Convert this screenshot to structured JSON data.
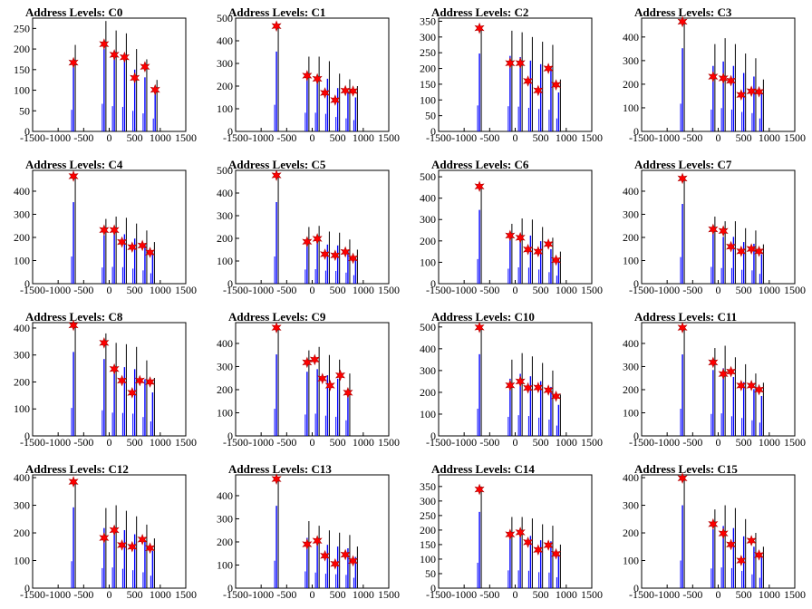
{
  "chart_data": [
    {
      "type": "bar",
      "title": "Address Levels: C0",
      "xlim": [
        -1500,
        1500
      ],
      "ylim": [
        0,
        275
      ],
      "xticks": [
        "-1500",
        "-1000",
        "-500",
        "0",
        "500",
        "1000",
        "1500"
      ],
      "yticks": [
        "0",
        "50",
        "100",
        "150",
        "200",
        "250"
      ],
      "peaks": [
        [
          -700,
          210
        ],
        [
          -100,
          268
        ],
        [
          100,
          245
        ],
        [
          300,
          238
        ],
        [
          500,
          200
        ],
        [
          700,
          175
        ],
        [
          900,
          125
        ]
      ],
      "markers": [
        [
          -700,
          167
        ],
        [
          -100,
          212
        ],
        [
          100,
          186
        ],
        [
          300,
          180
        ],
        [
          500,
          130
        ],
        [
          700,
          157
        ],
        [
          900,
          101
        ]
      ]
    },
    {
      "type": "bar",
      "title": "Address Levels: C1",
      "xlim": [
        -1500,
        1500
      ],
      "ylim": [
        0,
        500
      ],
      "xticks": [
        "-1500",
        "-1000",
        "-500",
        "0",
        "500",
        "1000",
        "1500"
      ],
      "yticks": [
        "0",
        "100",
        "200",
        "300",
        "400",
        "500"
      ],
      "peaks": [
        [
          -700,
          470
        ],
        [
          -100,
          330
        ],
        [
          100,
          330
        ],
        [
          300,
          310
        ],
        [
          500,
          255
        ],
        [
          700,
          230
        ],
        [
          850,
          200
        ]
      ],
      "markers": [
        [
          -700,
          465
        ],
        [
          -100,
          246
        ],
        [
          100,
          232
        ],
        [
          250,
          170
        ],
        [
          450,
          138
        ],
        [
          650,
          180
        ],
        [
          800,
          178
        ]
      ]
    },
    {
      "type": "bar",
      "title": "Address Levels: C2",
      "xlim": [
        -1500,
        1500
      ],
      "ylim": [
        0,
        360
      ],
      "xticks": [
        "-1500",
        "-1000",
        "-500",
        "0",
        "500",
        "1000",
        "1500"
      ],
      "yticks": [
        "0",
        "50",
        "100",
        "150",
        "200",
        "250",
        "300",
        "350"
      ],
      "peaks": [
        [
          -700,
          330
        ],
        [
          -100,
          320
        ],
        [
          100,
          315
        ],
        [
          300,
          300
        ],
        [
          500,
          285
        ],
        [
          700,
          275
        ],
        [
          850,
          165
        ]
      ],
      "markers": [
        [
          -700,
          328
        ],
        [
          -100,
          217
        ],
        [
          100,
          217
        ],
        [
          250,
          160
        ],
        [
          450,
          130
        ],
        [
          650,
          200
        ],
        [
          800,
          148
        ]
      ]
    },
    {
      "type": "bar",
      "title": "Address Levels: C3",
      "xlim": [
        -1500,
        1500
      ],
      "ylim": [
        0,
        480
      ],
      "xticks": [
        "-1500",
        "-1000",
        "-500",
        "0",
        "500",
        "1000",
        "1500"
      ],
      "yticks": [
        "0",
        "100",
        "200",
        "300",
        "400"
      ],
      "peaks": [
        [
          -700,
          470
        ],
        [
          -100,
          370
        ],
        [
          100,
          395
        ],
        [
          300,
          370
        ],
        [
          500,
          330
        ],
        [
          700,
          310
        ],
        [
          850,
          220
        ]
      ],
      "markers": [
        [
          -700,
          465
        ],
        [
          -100,
          232
        ],
        [
          100,
          225
        ],
        [
          250,
          215
        ],
        [
          450,
          155
        ],
        [
          650,
          170
        ],
        [
          800,
          168
        ]
      ]
    },
    {
      "type": "bar",
      "title": "Address Levels: C4",
      "xlim": [
        -1500,
        1500
      ],
      "ylim": [
        0,
        490
      ],
      "xticks": [
        "-1500",
        "-1000",
        "-500",
        "0",
        "500",
        "1000",
        "1500"
      ],
      "yticks": [
        "0",
        "100",
        "200",
        "300",
        "400"
      ],
      "peaks": [
        [
          -700,
          470
        ],
        [
          -100,
          280
        ],
        [
          100,
          290
        ],
        [
          300,
          285
        ],
        [
          500,
          260
        ],
        [
          700,
          230
        ],
        [
          850,
          180
        ]
      ],
      "markers": [
        [
          -700,
          465
        ],
        [
          -100,
          232
        ],
        [
          100,
          232
        ],
        [
          250,
          180
        ],
        [
          450,
          158
        ],
        [
          650,
          165
        ],
        [
          800,
          135
        ]
      ]
    },
    {
      "type": "bar",
      "title": "Address Levels: C5",
      "xlim": [
        -1500,
        1500
      ],
      "ylim": [
        0,
        500
      ],
      "xticks": [
        "-1500",
        "-1000",
        "-500",
        "0",
        "500",
        "1000",
        "1500"
      ],
      "yticks": [
        "0",
        "100",
        "200",
        "300",
        "400",
        "500"
      ],
      "peaks": [
        [
          -700,
          480
        ],
        [
          -100,
          250
        ],
        [
          100,
          255
        ],
        [
          300,
          230
        ],
        [
          500,
          225
        ],
        [
          700,
          195
        ],
        [
          850,
          150
        ]
      ],
      "markers": [
        [
          -700,
          478
        ],
        [
          -100,
          185
        ],
        [
          100,
          198
        ],
        [
          250,
          130
        ],
        [
          450,
          125
        ],
        [
          650,
          140
        ],
        [
          800,
          112
        ]
      ]
    },
    {
      "type": "bar",
      "title": "Address Levels: C6",
      "xlim": [
        -1500,
        1500
      ],
      "ylim": [
        0,
        530
      ],
      "xticks": [
        "-1500",
        "-1000",
        "-500",
        "0",
        "500",
        "1000",
        "1500"
      ],
      "yticks": [
        "0",
        "100",
        "200",
        "300",
        "400",
        "500"
      ],
      "peaks": [
        [
          -700,
          460
        ],
        [
          -100,
          280
        ],
        [
          100,
          305
        ],
        [
          300,
          300
        ],
        [
          500,
          265
        ],
        [
          700,
          215
        ],
        [
          850,
          150
        ]
      ],
      "markers": [
        [
          -700,
          455
        ],
        [
          -100,
          225
        ],
        [
          100,
          215
        ],
        [
          250,
          160
        ],
        [
          450,
          150
        ],
        [
          650,
          185
        ],
        [
          800,
          110
        ]
      ]
    },
    {
      "type": "bar",
      "title": "Address Levels: C7",
      "xlim": [
        -1500,
        1500
      ],
      "ylim": [
        0,
        490
      ],
      "xticks": [
        "-1500",
        "-1000",
        "-500",
        "0",
        "500",
        "1000",
        "1500"
      ],
      "yticks": [
        "0",
        "100",
        "200",
        "300",
        "400"
      ],
      "peaks": [
        [
          -700,
          460
        ],
        [
          -100,
          290
        ],
        [
          100,
          270
        ],
        [
          300,
          270
        ],
        [
          500,
          240
        ],
        [
          700,
          230
        ],
        [
          850,
          170
        ]
      ],
      "markers": [
        [
          -700,
          455
        ],
        [
          -100,
          235
        ],
        [
          100,
          228
        ],
        [
          250,
          160
        ],
        [
          450,
          140
        ],
        [
          650,
          150
        ],
        [
          800,
          140
        ]
      ]
    },
    {
      "type": "bar",
      "title": "Address Levels: C8",
      "xlim": [
        -1500,
        1500
      ],
      "ylim": [
        0,
        420
      ],
      "xticks": [
        "-1500",
        "-1000",
        "-500",
        "0",
        "500",
        "1000",
        "1500"
      ],
      "yticks": [
        "0",
        "100",
        "200",
        "300",
        "400"
      ],
      "peaks": [
        [
          -700,
          415
        ],
        [
          -100,
          380
        ],
        [
          100,
          345
        ],
        [
          300,
          340
        ],
        [
          500,
          330
        ],
        [
          700,
          280
        ],
        [
          850,
          215
        ]
      ],
      "markers": [
        [
          -700,
          410
        ],
        [
          -100,
          345
        ],
        [
          100,
          248
        ],
        [
          250,
          205
        ],
        [
          450,
          160
        ],
        [
          600,
          205
        ],
        [
          800,
          200
        ]
      ]
    },
    {
      "type": "bar",
      "title": "Address Levels: C9",
      "xlim": [
        -1500,
        1500
      ],
      "ylim": [
        0,
        490
      ],
      "xticks": [
        "-1500",
        "-1000",
        "-500",
        "0",
        "500",
        "1000",
        "1500"
      ],
      "yticks": [
        "0",
        "100",
        "200",
        "300",
        "400"
      ],
      "peaks": [
        [
          -700,
          470
        ],
        [
          -100,
          370
        ],
        [
          100,
          385
        ],
        [
          300,
          350
        ],
        [
          500,
          330
        ],
        [
          700,
          270
        ]
      ],
      "markers": [
        [
          -700,
          468
        ],
        [
          -100,
          318
        ],
        [
          50,
          330
        ],
        [
          200,
          248
        ],
        [
          350,
          218
        ],
        [
          550,
          262
        ],
        [
          700,
          187
        ]
      ]
    },
    {
      "type": "bar",
      "title": "Address Levels: C10",
      "xlim": [
        -1500,
        1500
      ],
      "ylim": [
        0,
        520
      ],
      "xticks": [
        "-1500",
        "-1000",
        "-500",
        "0",
        "500",
        "1000",
        "1500"
      ],
      "yticks": [
        "0",
        "100",
        "200",
        "300",
        "400",
        "500"
      ],
      "peaks": [
        [
          -700,
          500
        ],
        [
          -100,
          350
        ],
        [
          100,
          380
        ],
        [
          300,
          365
        ],
        [
          500,
          335
        ],
        [
          700,
          300
        ],
        [
          850,
          190
        ]
      ],
      "markers": [
        [
          -700,
          498
        ],
        [
          -100,
          232
        ],
        [
          100,
          250
        ],
        [
          250,
          220
        ],
        [
          450,
          222
        ],
        [
          650,
          210
        ],
        [
          800,
          182
        ]
      ]
    },
    {
      "type": "bar",
      "title": "Address Levels: C11",
      "xlim": [
        -1500,
        1500
      ],
      "ylim": [
        0,
        490
      ],
      "xticks": [
        "-1500",
        "-1000",
        "-500",
        "0",
        "500",
        "1000",
        "1500"
      ],
      "yticks": [
        "0",
        "100",
        "200",
        "300",
        "400"
      ],
      "peaks": [
        [
          -700,
          470
        ],
        [
          -100,
          380
        ],
        [
          100,
          390
        ],
        [
          300,
          340
        ],
        [
          500,
          310
        ],
        [
          700,
          270
        ],
        [
          850,
          230
        ]
      ],
      "markers": [
        [
          -700,
          468
        ],
        [
          -100,
          318
        ],
        [
          100,
          268
        ],
        [
          250,
          278
        ],
        [
          450,
          218
        ],
        [
          650,
          218
        ],
        [
          800,
          200
        ]
      ]
    },
    {
      "type": "bar",
      "title": "Address Levels: C12",
      "xlim": [
        -1500,
        1500
      ],
      "ylim": [
        0,
        410
      ],
      "xticks": [
        "-1500",
        "-1000",
        "-500",
        "0",
        "500",
        "1000",
        "1500"
      ],
      "yticks": [
        "0",
        "100",
        "200",
        "300",
        "400"
      ],
      "peaks": [
        [
          -700,
          390
        ],
        [
          -100,
          290
        ],
        [
          100,
          300
        ],
        [
          300,
          280
        ],
        [
          500,
          260
        ],
        [
          700,
          230
        ],
        [
          850,
          180
        ]
      ],
      "markers": [
        [
          -700,
          385
        ],
        [
          -100,
          182
        ],
        [
          100,
          210
        ],
        [
          250,
          156
        ],
        [
          450,
          150
        ],
        [
          650,
          176
        ],
        [
          800,
          145
        ]
      ]
    },
    {
      "type": "bar",
      "title": "Address Levels: C13",
      "xlim": [
        -1500,
        1500
      ],
      "ylim": [
        0,
        490
      ],
      "xticks": [
        "-1500",
        "-1000",
        "-500",
        "0",
        "500",
        "1000",
        "1500"
      ],
      "yticks": [
        "0",
        "100",
        "200",
        "300",
        "400"
      ],
      "peaks": [
        [
          -700,
          475
        ],
        [
          -100,
          290
        ],
        [
          100,
          270
        ],
        [
          300,
          250
        ],
        [
          500,
          240
        ],
        [
          700,
          230
        ],
        [
          850,
          180
        ]
      ],
      "markers": [
        [
          -700,
          472
        ],
        [
          -100,
          190
        ],
        [
          100,
          205
        ],
        [
          250,
          140
        ],
        [
          450,
          105
        ],
        [
          650,
          145
        ],
        [
          800,
          118
        ]
      ]
    },
    {
      "type": "bar",
      "title": "Address Levels: C14",
      "xlim": [
        -1500,
        1500
      ],
      "ylim": [
        0,
        390
      ],
      "xticks": [
        "-1500",
        "-1000",
        "-500",
        "0",
        "500",
        "1000",
        "1500"
      ],
      "yticks": [
        "0",
        "50",
        "100",
        "150",
        "200",
        "250",
        "300",
        "350"
      ],
      "peaks": [
        [
          -700,
          350
        ],
        [
          -100,
          245
        ],
        [
          100,
          245
        ],
        [
          300,
          240
        ],
        [
          500,
          220
        ],
        [
          700,
          215
        ],
        [
          850,
          150
        ]
      ],
      "markers": [
        [
          -700,
          340
        ],
        [
          -100,
          185
        ],
        [
          100,
          192
        ],
        [
          250,
          158
        ],
        [
          450,
          132
        ],
        [
          650,
          148
        ],
        [
          800,
          118
        ]
      ]
    },
    {
      "type": "bar",
      "title": "Address Levels: C15",
      "xlim": [
        -1500,
        1500
      ],
      "ylim": [
        0,
        410
      ],
      "xticks": [
        "-1500",
        "-1000",
        "-500",
        "0",
        "500",
        "1000",
        "1500"
      ],
      "yticks": [
        "0",
        "100",
        "200",
        "300",
        "400"
      ],
      "peaks": [
        [
          -700,
          400
        ],
        [
          -100,
          285
        ],
        [
          100,
          300
        ],
        [
          300,
          290
        ],
        [
          500,
          250
        ],
        [
          700,
          200
        ],
        [
          850,
          150
        ]
      ],
      "markers": [
        [
          -700,
          398
        ],
        [
          -100,
          232
        ],
        [
          100,
          198
        ],
        [
          250,
          158
        ],
        [
          450,
          100
        ],
        [
          650,
          172
        ],
        [
          800,
          120
        ]
      ]
    }
  ],
  "colors": {
    "bars": "#0000ff",
    "secondary_bars": "#000000",
    "marker": "#ff0000",
    "axis": "#000000"
  }
}
